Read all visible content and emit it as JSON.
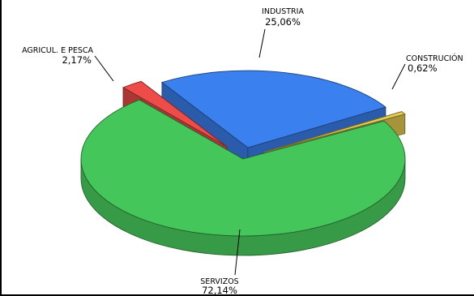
{
  "chart_data": {
    "type": "pie",
    "title": "",
    "labels": [
      "INDUSTRIA",
      "CONSTRUCIÓN",
      "SERVIZOS",
      "AGRICUL. E PESCA"
    ],
    "values": [
      25.06,
      0.62,
      72.14,
      2.17
    ],
    "value_labels": [
      "25,06%",
      "0,62%",
      "72,14%",
      "2,17%"
    ],
    "colors": [
      "#3a80ee",
      "#e6cc50",
      "#45c65a",
      "#ee4c48"
    ],
    "exploded": true,
    "three_d": true,
    "legend": "none"
  }
}
